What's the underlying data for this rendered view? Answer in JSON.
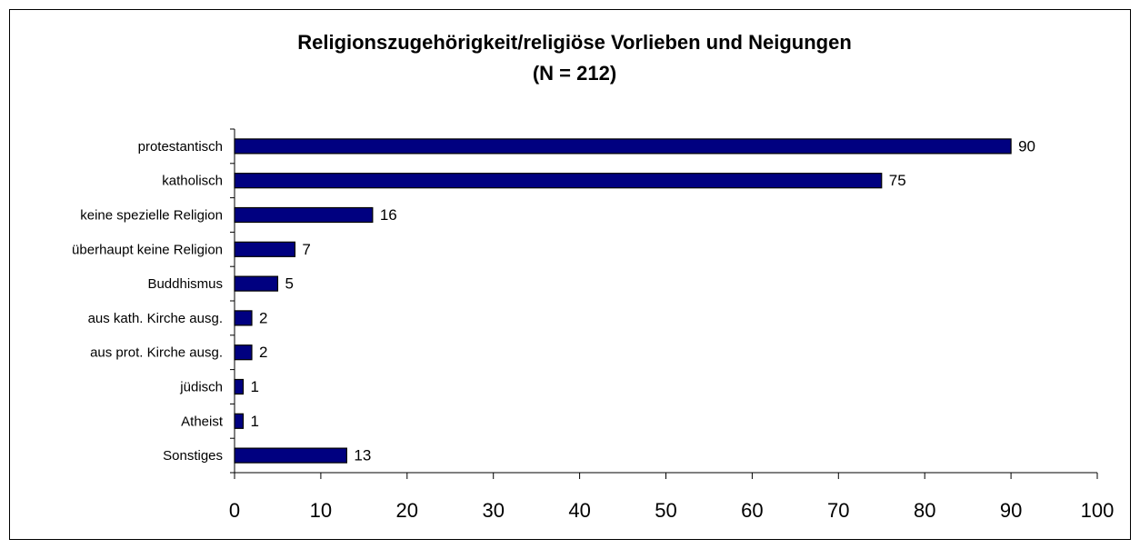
{
  "chart_data": {
    "type": "bar",
    "orientation": "horizontal",
    "title": "Religionszugehörigkeit/religiöse Vorlieben und Neigungen",
    "subtitle": "(N = 212)",
    "categories": [
      "protestantisch",
      "katholisch",
      "keine spezielle Religion",
      "überhaupt keine Religion",
      "Buddhismus",
      "aus kath. Kirche ausg.",
      "aus prot. Kirche ausg.",
      "jüdisch",
      "Atheist",
      "Sonstiges"
    ],
    "values": [
      90,
      75,
      16,
      7,
      5,
      2,
      2,
      1,
      1,
      13
    ],
    "color": "#000080",
    "xlim": [
      0,
      100
    ],
    "xticks": [
      0,
      10,
      20,
      30,
      40,
      50,
      60,
      70,
      80,
      90,
      100
    ]
  }
}
